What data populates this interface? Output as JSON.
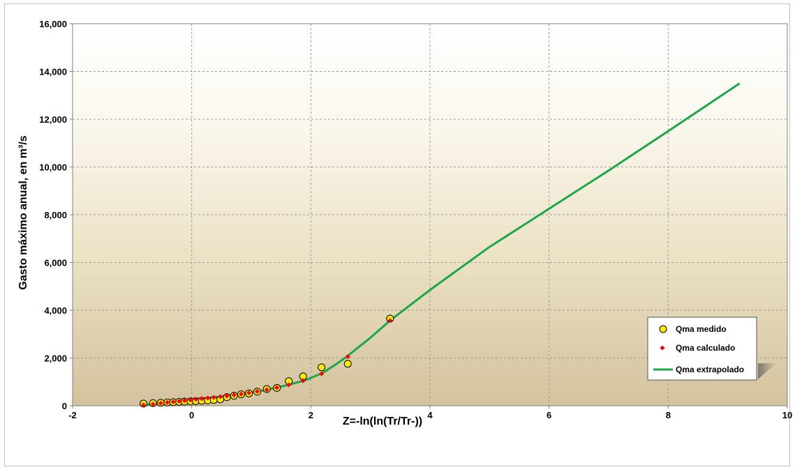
{
  "chart_data": {
    "type": "scatter",
    "xlabel": "Z=-ln(ln(Tr/Tr-))",
    "ylabel": "Gasto máximo anual, en m³/s",
    "xlim": [
      -2,
      10
    ],
    "ylim": [
      0,
      16000
    ],
    "xticks": [
      "-2",
      "0",
      "2",
      "4",
      "6",
      "8",
      "10"
    ],
    "yticks": [
      "0",
      "2,000",
      "4,000",
      "6,000",
      "8,000",
      "10,000",
      "12,000",
      "14,000",
      "16,000"
    ],
    "grid": true,
    "legend_position": "bottom-right",
    "series": [
      {
        "name": "Qma medido",
        "marker": "circle",
        "color": "#ffeb00",
        "points": [
          [
            -0.81,
            90
          ],
          [
            -0.65,
            110
          ],
          [
            -0.52,
            125
          ],
          [
            -0.41,
            140
          ],
          [
            -0.31,
            150
          ],
          [
            -0.21,
            165
          ],
          [
            -0.12,
            175
          ],
          [
            -0.02,
            185
          ],
          [
            0.07,
            195
          ],
          [
            0.17,
            210
          ],
          [
            0.27,
            225
          ],
          [
            0.37,
            245
          ],
          [
            0.48,
            270
          ],
          [
            0.59,
            360
          ],
          [
            0.71,
            420
          ],
          [
            0.83,
            480
          ],
          [
            0.96,
            520
          ],
          [
            1.1,
            590
          ],
          [
            1.26,
            700
          ],
          [
            1.43,
            750
          ],
          [
            1.63,
            1030
          ],
          [
            1.87,
            1230
          ],
          [
            2.18,
            1610
          ],
          [
            2.62,
            1760
          ],
          [
            3.33,
            3650
          ]
        ]
      },
      {
        "name": "Qma calculado",
        "marker": "diamond",
        "color": "#ff0000",
        "points": [
          [
            -0.81,
            30
          ],
          [
            -0.65,
            70
          ],
          [
            -0.52,
            110
          ],
          [
            -0.41,
            140
          ],
          [
            -0.31,
            165
          ],
          [
            -0.21,
            190
          ],
          [
            -0.12,
            215
          ],
          [
            -0.02,
            240
          ],
          [
            0.07,
            270
          ],
          [
            0.17,
            295
          ],
          [
            0.27,
            325
          ],
          [
            0.37,
            350
          ],
          [
            0.48,
            380
          ],
          [
            0.59,
            410
          ],
          [
            0.71,
            450
          ],
          [
            0.83,
            490
          ],
          [
            0.96,
            540
          ],
          [
            1.1,
            600
          ],
          [
            1.26,
            670
          ],
          [
            1.43,
            760
          ],
          [
            1.63,
            880
          ],
          [
            1.87,
            1050
          ],
          [
            2.18,
            1340
          ],
          [
            2.62,
            2060
          ],
          [
            3.33,
            3570
          ]
        ]
      },
      {
        "name": "Qma extrapolado",
        "marker": "line",
        "color": "#1aa748",
        "points": [
          [
            -0.81,
            30
          ],
          [
            -0.3,
            170
          ],
          [
            0.2,
            300
          ],
          [
            0.7,
            440
          ],
          [
            1.2,
            640
          ],
          [
            1.6,
            860
          ],
          [
            1.9,
            1060
          ],
          [
            2.2,
            1380
          ],
          [
            2.4,
            1700
          ],
          [
            2.6,
            2050
          ],
          [
            3.0,
            2850
          ],
          [
            3.33,
            3570
          ],
          [
            4.0,
            4850
          ],
          [
            5.0,
            6650
          ],
          [
            6.0,
            8250
          ],
          [
            7.0,
            9850
          ],
          [
            8.0,
            11500
          ],
          [
            9.2,
            13500
          ]
        ]
      }
    ]
  }
}
